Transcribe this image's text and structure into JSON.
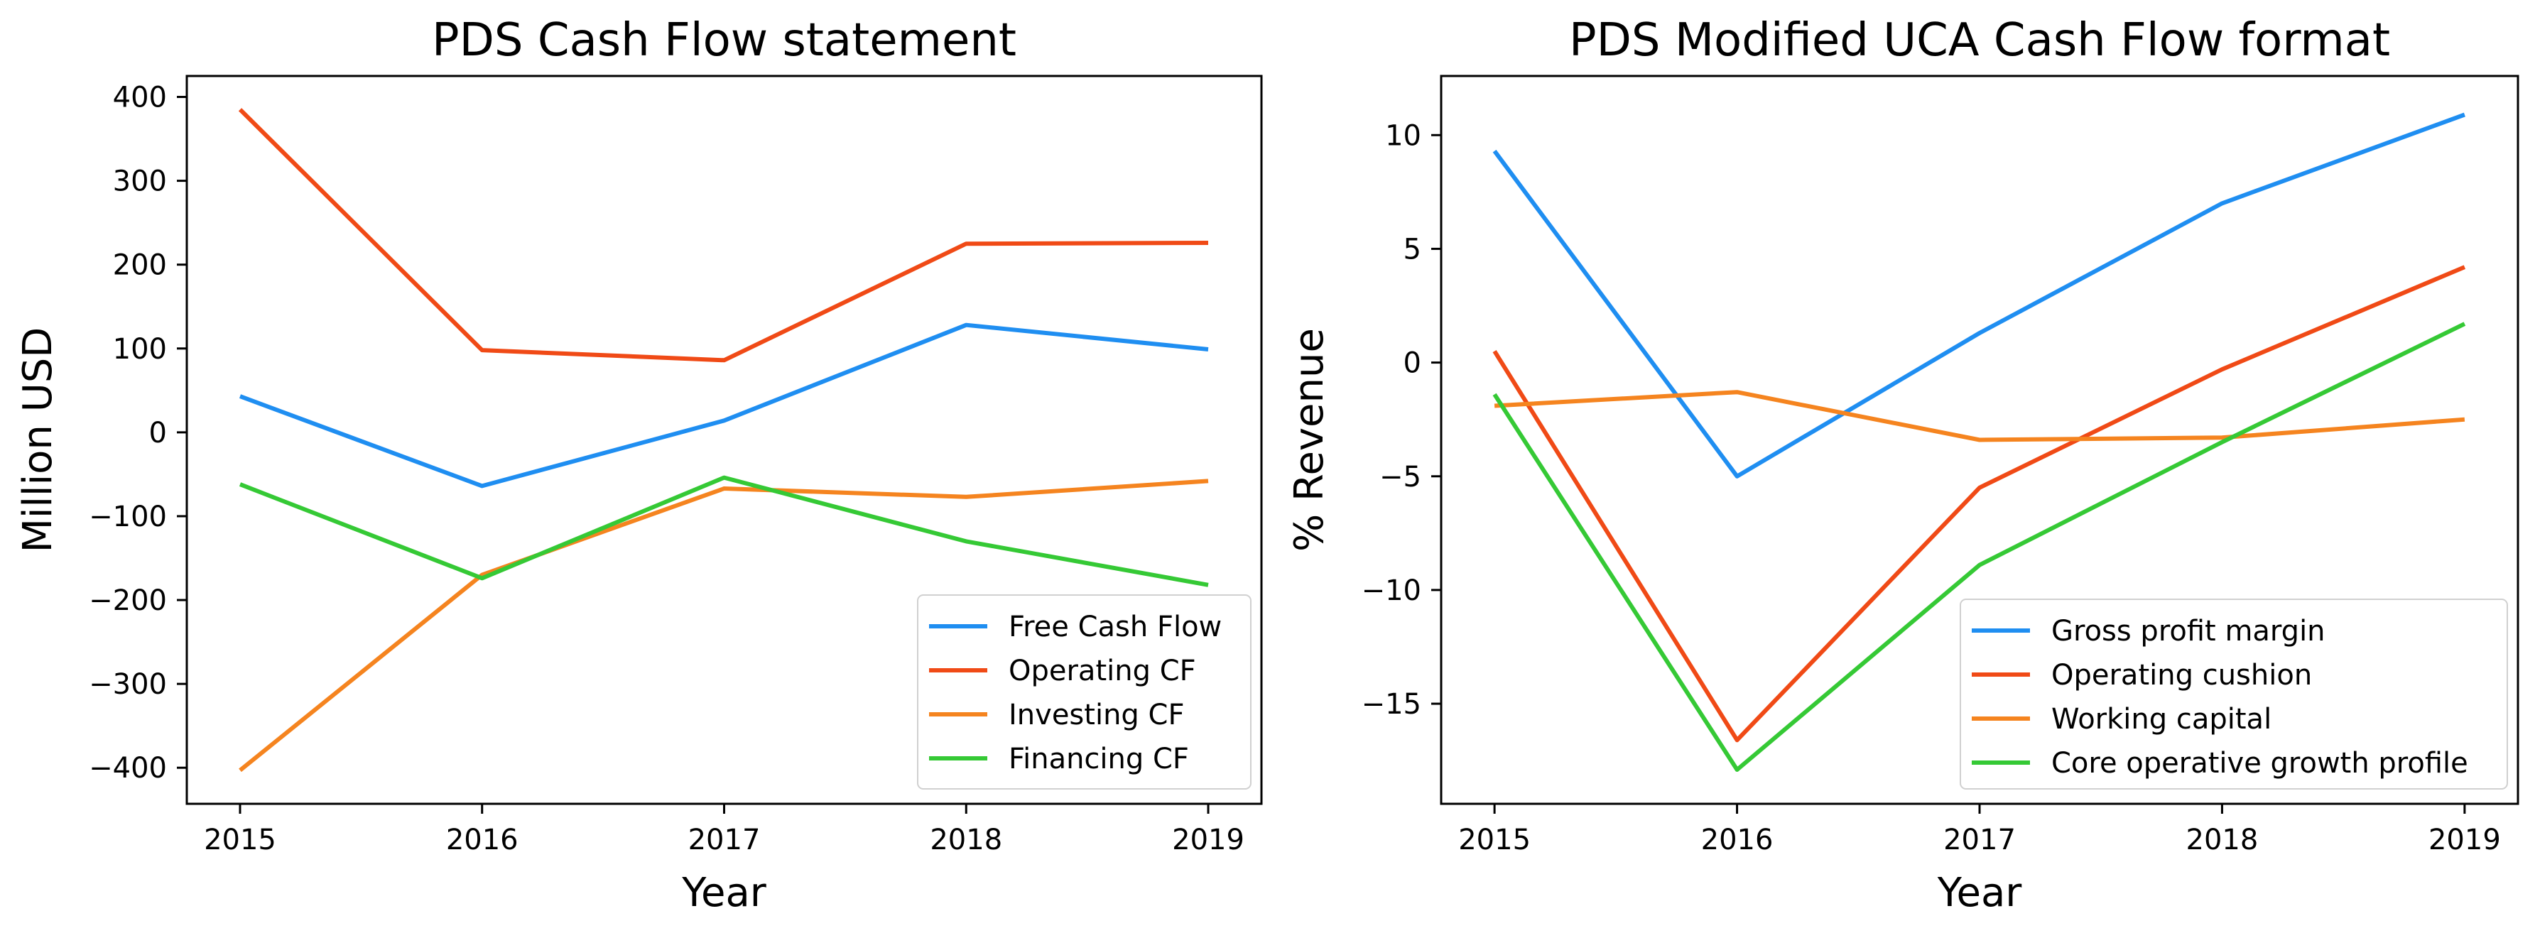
{
  "chart_data": [
    {
      "type": "line",
      "title": "PDS Cash Flow statement",
      "xlabel": "Year",
      "ylabel": "Million USD",
      "x": [
        2015,
        2016,
        2017,
        2018,
        2019
      ],
      "xticks": [
        "2015",
        "2016",
        "2017",
        "2018",
        "2019"
      ],
      "yticks": [
        "400",
        "300",
        "200",
        "100",
        "0",
        "−100",
        "−200",
        "−300",
        "−400"
      ],
      "ytick_values": [
        400,
        300,
        200,
        100,
        0,
        -100,
        -200,
        -300,
        -400
      ],
      "xlim": [
        2014.78,
        2019.22
      ],
      "ylim": [
        -443,
        425
      ],
      "grid": false,
      "legend_position": "lower-right",
      "series": [
        {
          "name": "Free Cash Flow",
          "color": "#1f8ef1",
          "values": [
            43,
            -64,
            14,
            128,
            99
          ]
        },
        {
          "name": "Operating CF",
          "color": "#f04a16",
          "values": [
            385,
            98,
            86,
            225,
            226
          ]
        },
        {
          "name": "Investing CF",
          "color": "#f5841f",
          "values": [
            -403,
            -170,
            -67,
            -77,
            -58
          ]
        },
        {
          "name": "Financing CF",
          "color": "#35c935",
          "values": [
            -62,
            -174,
            -54,
            -130,
            -182
          ]
        }
      ]
    },
    {
      "type": "line",
      "title": "PDS Modified UCA Cash Flow format",
      "xlabel": "Year",
      "ylabel": "% Revenue",
      "x": [
        2015,
        2016,
        2017,
        2018,
        2019
      ],
      "xticks": [
        "2015",
        "2016",
        "2017",
        "2018",
        "2019"
      ],
      "yticks": [
        "10",
        "5",
        "0",
        "−5",
        "−10",
        "−15"
      ],
      "ytick_values": [
        10,
        5,
        0,
        -5,
        -10,
        -15
      ],
      "xlim": [
        2014.78,
        2019.22
      ],
      "ylim": [
        -19.4,
        12.6
      ],
      "grid": false,
      "legend_position": "lower-right",
      "series": [
        {
          "name": "Gross profit margin",
          "color": "#1f8ef1",
          "values": [
            9.3,
            -5.0,
            1.3,
            7.0,
            10.9
          ]
        },
        {
          "name": "Operating cushion",
          "color": "#f04a16",
          "values": [
            0.5,
            -16.6,
            -5.5,
            -0.3,
            4.2
          ]
        },
        {
          "name": "Working capital",
          "color": "#f5841f",
          "values": [
            -1.9,
            -1.3,
            -3.4,
            -3.3,
            -2.5
          ]
        },
        {
          "name": "Core operative growth profile",
          "color": "#35c935",
          "values": [
            -1.4,
            -17.9,
            -8.9,
            -3.5,
            1.7
          ]
        }
      ]
    }
  ]
}
